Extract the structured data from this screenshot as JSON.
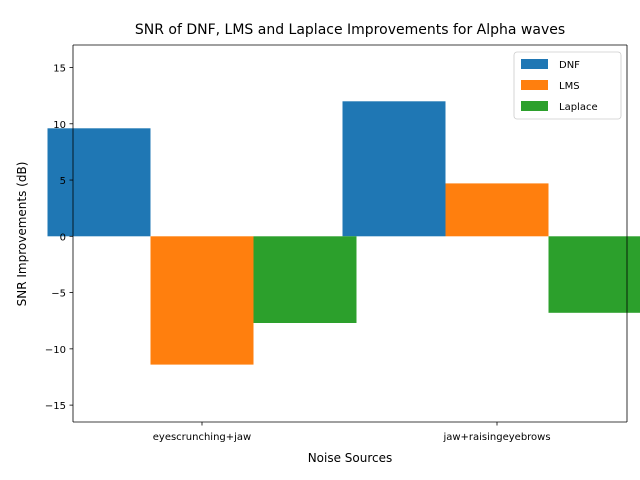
{
  "chart_data": {
    "type": "bar",
    "title": "SNR of DNF, LMS and Laplace Improvements for Alpha waves",
    "xlabel": "Noise Sources",
    "ylabel": "SNR Improvements (dB)",
    "categories": [
      "eyescrunching+jaw",
      "jaw+raisingeyebrows"
    ],
    "series": [
      {
        "name": "DNF",
        "color": "#1f77b4",
        "values": [
          9.6,
          12.0
        ]
      },
      {
        "name": "LMS",
        "color": "#ff7f0e",
        "values": [
          -11.4,
          4.7
        ]
      },
      {
        "name": "Laplace",
        "color": "#2ca02c",
        "values": [
          -7.7,
          -6.8
        ]
      }
    ],
    "ylim": [
      -16.5,
      17
    ],
    "yticks": [
      -15,
      -10,
      -5,
      0,
      5,
      10,
      15
    ],
    "ytick_labels": [
      "−15",
      "−10",
      "−5",
      "0",
      "5",
      "10",
      "15"
    ],
    "grid": false,
    "legend_position": "upper right"
  }
}
